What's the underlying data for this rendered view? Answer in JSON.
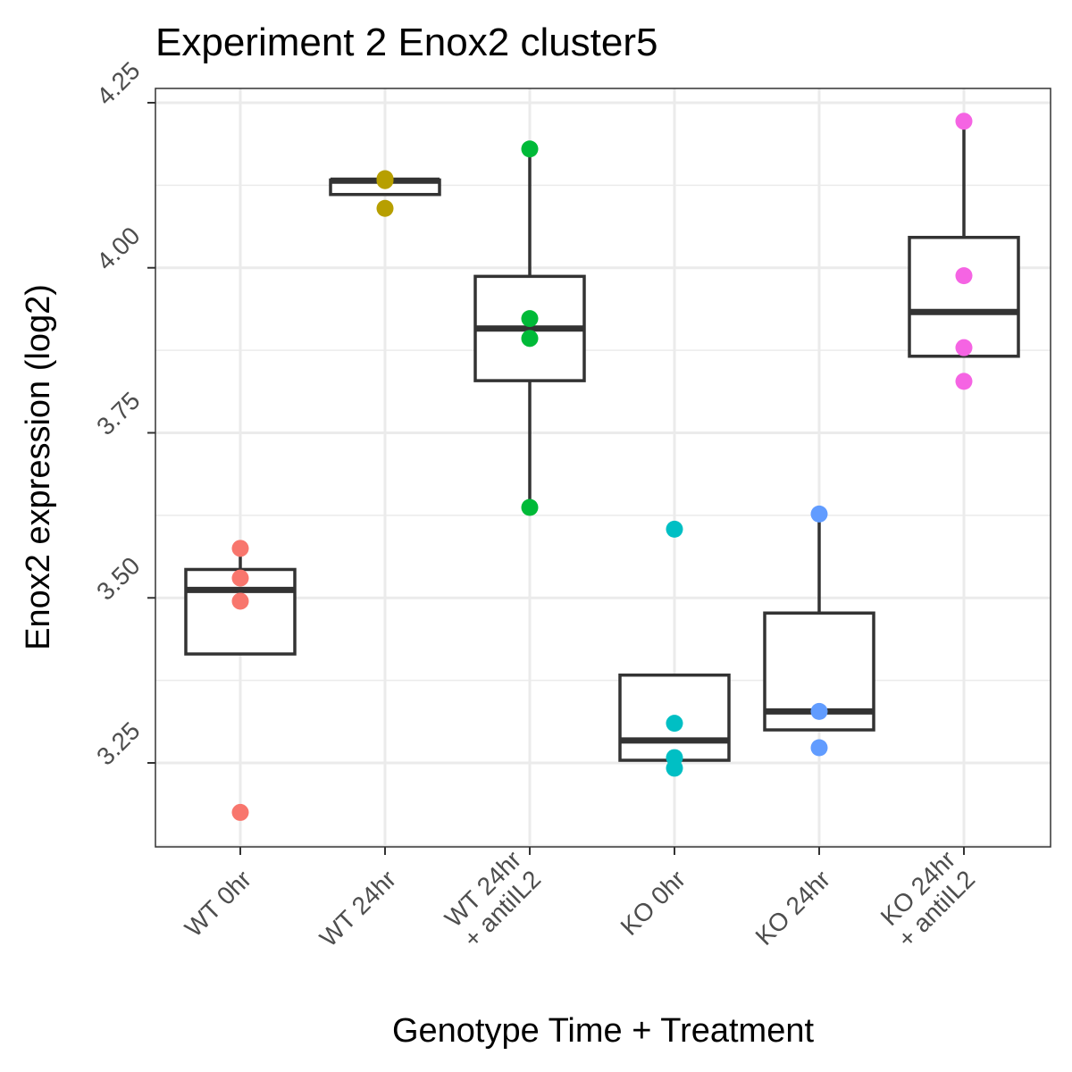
{
  "chart_data": {
    "type": "boxplot",
    "title": "Experiment 2 Enox2 cluster5",
    "xlabel": "Genotype Time + Treatment",
    "ylabel": "Enox2 expression (log2)",
    "ylim": [
      3.12,
      4.27
    ],
    "y_ticks": [
      "3.25",
      "3.50",
      "3.75",
      "4.00",
      "4.25"
    ],
    "grid": true,
    "legend": "none",
    "categories": [
      [
        "WT 0hr"
      ],
      [
        "WT 24hr"
      ],
      [
        "WT 24hr",
        "+ antiIL2"
      ],
      [
        "KO 0hr"
      ],
      [
        "KO 24hr"
      ],
      [
        "KO 24hr",
        "+ antiIL2"
      ]
    ],
    "groups": [
      {
        "color": "#F8766D",
        "points": [
          3.575,
          3.53,
          3.495,
          3.175
        ],
        "box": {
          "lower": 3.415,
          "q1": 3.415,
          "median": 3.512,
          "q3": 3.543,
          "upper": 3.575
        }
      },
      {
        "color": "#B79F00",
        "points": [
          4.135,
          4.132,
          4.09
        ],
        "box": {
          "lower": 4.11,
          "q1": 4.111,
          "median": 4.132,
          "q3": 4.133,
          "upper": 4.135
        }
      },
      {
        "color": "#00BA38",
        "points": [
          4.18,
          3.923,
          3.893,
          3.637
        ],
        "box": {
          "lower": 3.637,
          "q1": 3.829,
          "median": 3.908,
          "q3": 3.987,
          "upper": 4.18
        }
      },
      {
        "color": "#00BFC4",
        "points": [
          3.604,
          3.31,
          3.258,
          3.242
        ],
        "box": {
          "lower": 3.254,
          "q1": 3.254,
          "median": 3.284,
          "q3": 3.383,
          "upper": 3.383
        }
      },
      {
        "color": "#619CFF",
        "points": [
          3.627,
          3.328,
          3.273
        ],
        "box": {
          "lower": 3.3,
          "q1": 3.3,
          "median": 3.328,
          "q3": 3.477,
          "upper": 3.627
        }
      },
      {
        "color": "#F564E3",
        "points": [
          4.222,
          3.988,
          3.879,
          3.828
        ],
        "box": {
          "lower": 3.866,
          "q1": 3.866,
          "median": 3.933,
          "q3": 4.046,
          "upper": 4.222
        }
      }
    ]
  }
}
